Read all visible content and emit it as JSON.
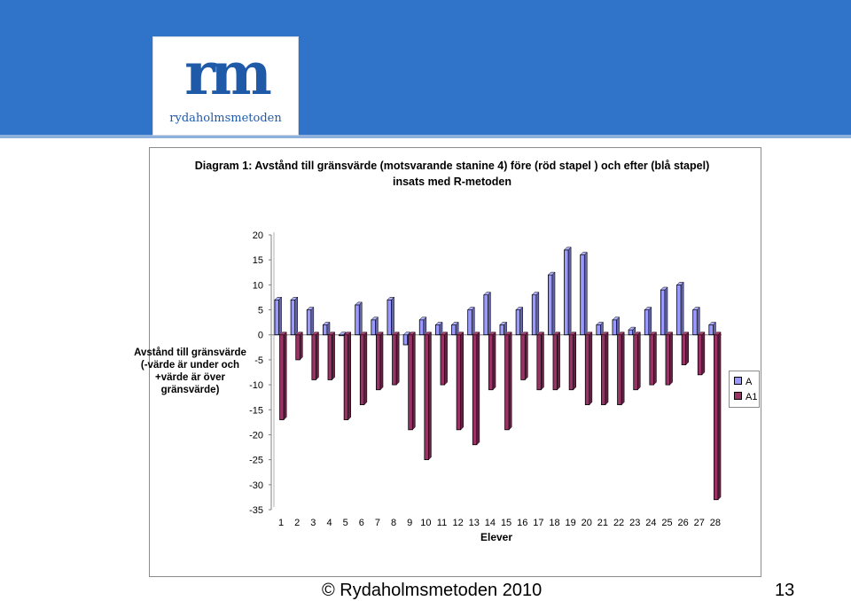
{
  "logo": {
    "mark": "rm",
    "name": "rydaholmsmetoden"
  },
  "chart_data": {
    "type": "bar",
    "title": "Diagram 1: Avstånd till gränsvärde  (motsvarande stanine 4) före (röd stapel ) och efter (blå stapel) insats med R-metoden",
    "xlabel": "Elever",
    "ylabel": "Avstånd till gränsvärde (-värde är under och +värde är över gränsvärde)",
    "ylim": [
      -35,
      20
    ],
    "yticks": [
      "20",
      "15",
      "10",
      "5",
      "0",
      "-5",
      "-10",
      "-15",
      "-20",
      "-25",
      "-30",
      "-35"
    ],
    "grid": false,
    "legend_position": "right",
    "categories": [
      "1",
      "2",
      "3",
      "4",
      "5",
      "6",
      "7",
      "8",
      "9",
      "10",
      "11",
      "12",
      "13",
      "14",
      "15",
      "16",
      "17",
      "18",
      "19",
      "20",
      "21",
      "22",
      "23",
      "24",
      "25",
      "26",
      "27",
      "28"
    ],
    "series": [
      {
        "name": "A",
        "color": "#9999ff",
        "values": [
          7,
          7,
          5,
          2,
          0,
          6,
          3,
          7,
          -2,
          3,
          2,
          2,
          5,
          8,
          2,
          5,
          8,
          12,
          17,
          16,
          2,
          3,
          1,
          5,
          9,
          10,
          5,
          2
        ]
      },
      {
        "name": "A1",
        "color": "#993366",
        "values": [
          -17,
          -5,
          -9,
          -9,
          -17,
          -14,
          -11,
          -10,
          -19,
          -25,
          -10,
          -19,
          -22,
          -11,
          -19,
          -9,
          -11,
          -11,
          -11,
          -14,
          -14,
          -14,
          -11,
          -10,
          -10,
          -6,
          -8,
          -33
        ]
      }
    ]
  },
  "footer": {
    "copyright": "© Rydaholmsmetoden 2010",
    "page_number": "13"
  }
}
